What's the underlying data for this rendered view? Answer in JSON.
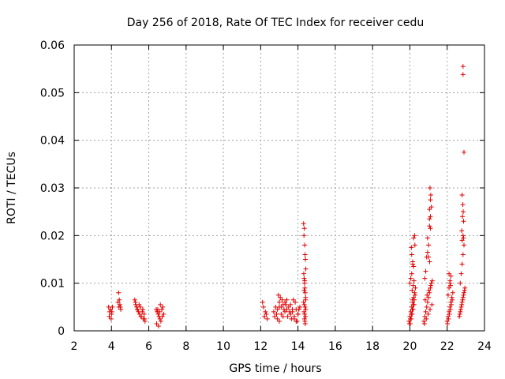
{
  "chart_data": {
    "type": "scatter",
    "title": "Day 256 of 2018, Rate Of TEC Index for receiver cedu",
    "xlabel": "GPS time / hours",
    "ylabel": "ROTI / TECUs",
    "xlim": [
      2,
      24
    ],
    "ylim": [
      0,
      0.06
    ],
    "x_ticks": [
      2,
      4,
      6,
      8,
      10,
      12,
      14,
      16,
      18,
      20,
      22,
      24
    ],
    "x_tick_labels": [
      "2",
      "4",
      "6",
      "8",
      "10",
      "12",
      "14",
      "16",
      "18",
      "20",
      "22",
      "24"
    ],
    "y_ticks": [
      0,
      0.01,
      0.02,
      0.03,
      0.04,
      0.05,
      0.06
    ],
    "y_tick_labels": [
      "0",
      "0.01",
      "0.02",
      "0.03",
      "0.04",
      "0.05",
      "0.06"
    ],
    "grid": true,
    "marker": "+",
    "color": "#e00000",
    "series": [
      {
        "name": "ROTI",
        "x": [
          3.85,
          3.9,
          3.95,
          4.0,
          4.05,
          3.88,
          3.98,
          4.02,
          4.35,
          4.4,
          4.45,
          4.5,
          4.38,
          4.42,
          4.48,
          5.25,
          5.3,
          5.35,
          5.4,
          5.45,
          5.5,
          5.55,
          5.6,
          5.65,
          5.7,
          5.75,
          5.8,
          5.28,
          5.38,
          5.48,
          5.58,
          5.68,
          5.78,
          6.4,
          6.45,
          6.5,
          6.55,
          6.6,
          6.65,
          6.7,
          6.75,
          6.8,
          6.42,
          6.52,
          6.62,
          6.72,
          6.48,
          6.58,
          12.1,
          12.15,
          12.2,
          12.25,
          12.3,
          12.35,
          12.7,
          12.8,
          12.9,
          13.0,
          13.1,
          13.2,
          13.3,
          13.4,
          13.5,
          13.6,
          13.7,
          13.8,
          13.9,
          14.0,
          14.1,
          12.75,
          12.85,
          12.95,
          13.05,
          13.15,
          13.25,
          13.35,
          13.45,
          13.55,
          13.65,
          13.75,
          13.85,
          13.95,
          14.05,
          12.9,
          13.0,
          13.1,
          13.2,
          13.4,
          13.6,
          13.8,
          14.0,
          13.0,
          13.3,
          13.7,
          13.9,
          14.3,
          14.32,
          14.34,
          14.36,
          14.38,
          14.4,
          14.42,
          14.31,
          14.33,
          14.35,
          14.37,
          14.39,
          14.41,
          14.3,
          14.34,
          14.38,
          14.42,
          14.32,
          14.36,
          14.4,
          14.35,
          14.37,
          14.39,
          14.41,
          14.33,
          14.36,
          19.95,
          20.0,
          20.05,
          20.1,
          20.15,
          20.2,
          20.25,
          20.3,
          19.98,
          20.03,
          20.08,
          20.13,
          20.18,
          20.23,
          20.28,
          20.0,
          20.05,
          20.1,
          20.15,
          20.2,
          20.25,
          20.02,
          20.07,
          20.12,
          20.17,
          20.22,
          20.27,
          20.1,
          20.15,
          20.2,
          20.12,
          20.18,
          20.22,
          20.08,
          20.14,
          20.75,
          20.8,
          20.85,
          20.9,
          20.95,
          21.0,
          21.05,
          21.1,
          21.15,
          21.2,
          20.78,
          20.88,
          20.98,
          21.08,
          21.18,
          20.8,
          20.85,
          20.9,
          20.95,
          21.0,
          21.05,
          21.1,
          21.15,
          20.82,
          20.92,
          21.02,
          21.12,
          20.95,
          21.05,
          21.1,
          21.0,
          21.08,
          21.12,
          21.05,
          21.1,
          21.06,
          22.0,
          22.05,
          22.1,
          22.15,
          22.2,
          22.25,
          22.3,
          22.02,
          22.07,
          22.12,
          22.17,
          22.22,
          22.27,
          22.05,
          22.1,
          22.15,
          22.2,
          22.1,
          22.15,
          22.18,
          22.65,
          22.7,
          22.75,
          22.8,
          22.85,
          22.9,
          22.95,
          22.68,
          22.73,
          22.78,
          22.83,
          22.88,
          22.93,
          22.7,
          22.75,
          22.8,
          22.85,
          22.9,
          22.8,
          22.85,
          22.78,
          22.88,
          22.82,
          22.86,
          22.84,
          22.8,
          22.9,
          22.85,
          22.85,
          22.88
        ],
        "y": [
          0.005,
          0.004,
          0.0045,
          0.0035,
          0.005,
          0.003,
          0.0025,
          0.004,
          0.006,
          0.005,
          0.0055,
          0.0045,
          0.008,
          0.0065,
          0.005,
          0.0065,
          0.0055,
          0.005,
          0.0045,
          0.004,
          0.0035,
          0.005,
          0.003,
          0.004,
          0.0025,
          0.0035,
          0.002,
          0.006,
          0.0045,
          0.0055,
          0.003,
          0.0045,
          0.0025,
          0.0045,
          0.004,
          0.0035,
          0.003,
          0.0025,
          0.002,
          0.0045,
          0.005,
          0.0035,
          0.0015,
          0.001,
          0.0055,
          0.003,
          0.0045,
          0.004,
          0.006,
          0.005,
          0.003,
          0.004,
          0.0035,
          0.0025,
          0.004,
          0.005,
          0.0045,
          0.006,
          0.005,
          0.0055,
          0.004,
          0.0045,
          0.005,
          0.0035,
          0.004,
          0.003,
          0.0045,
          0.0035,
          0.005,
          0.003,
          0.0035,
          0.0075,
          0.007,
          0.0065,
          0.0045,
          0.0055,
          0.003,
          0.004,
          0.0025,
          0.0065,
          0.006,
          0.002,
          0.0045,
          0.0025,
          0.002,
          0.0035,
          0.003,
          0.0065,
          0.0055,
          0.0025,
          0.0035,
          0.005,
          0.006,
          0.0045,
          0.002,
          0.0225,
          0.02,
          0.0215,
          0.018,
          0.016,
          0.015,
          0.013,
          0.012,
          0.011,
          0.01,
          0.009,
          0.008,
          0.007,
          0.006,
          0.0055,
          0.005,
          0.0045,
          0.004,
          0.0035,
          0.003,
          0.0025,
          0.002,
          0.0015,
          0.0065,
          0.0085,
          0.0105,
          0.002,
          0.003,
          0.004,
          0.005,
          0.006,
          0.007,
          0.008,
          0.009,
          0.0015,
          0.0025,
          0.0035,
          0.0045,
          0.0055,
          0.0065,
          0.0075,
          0.01,
          0.011,
          0.012,
          0.014,
          0.0195,
          0.02,
          0.0015,
          0.0025,
          0.0035,
          0.0045,
          0.0055,
          0.018,
          0.016,
          0.0145,
          0.0135,
          0.0085,
          0.0095,
          0.0105,
          0.0175,
          0.0065,
          0.002,
          0.003,
          0.004,
          0.005,
          0.006,
          0.007,
          0.008,
          0.009,
          0.01,
          0.0105,
          0.0015,
          0.0025,
          0.0035,
          0.0045,
          0.0055,
          0.011,
          0.0125,
          0.0155,
          0.0165,
          0.018,
          0.022,
          0.024,
          0.026,
          0.0065,
          0.0075,
          0.0085,
          0.0095,
          0.0195,
          0.0255,
          0.0275,
          0.0155,
          0.03,
          0.0285,
          0.0235,
          0.0215,
          0.0145,
          0.002,
          0.003,
          0.004,
          0.005,
          0.006,
          0.007,
          0.008,
          0.0015,
          0.0025,
          0.0035,
          0.0045,
          0.0055,
          0.0065,
          0.0075,
          0.009,
          0.01,
          0.0115,
          0.012,
          0.0105,
          0.0095,
          0.003,
          0.004,
          0.005,
          0.006,
          0.007,
          0.008,
          0.009,
          0.0035,
          0.0045,
          0.0055,
          0.0065,
          0.0075,
          0.0085,
          0.01,
          0.012,
          0.014,
          0.016,
          0.018,
          0.019,
          0.02,
          0.021,
          0.023,
          0.024,
          0.025,
          0.0265,
          0.0285,
          0.0375,
          0.0538,
          0.0555,
          0.0195
        ]
      }
    ]
  }
}
